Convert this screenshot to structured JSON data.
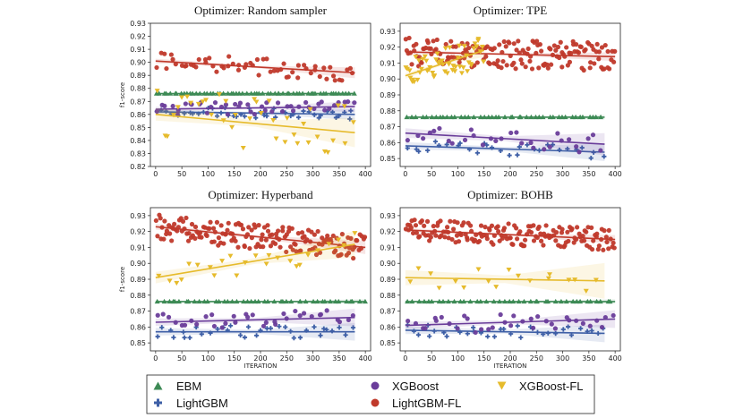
{
  "colors": {
    "EBM": "#3d8a55",
    "LightGBM": "#3e5fa6",
    "XGBoost": "#6a3d9a",
    "LightGBM-FL": "#c0392b",
    "XGBoost-FL": "#e6bb2c"
  },
  "legend": {
    "items": [
      {
        "key": "EBM",
        "label": "EBM",
        "marker": "triangle-up"
      },
      {
        "key": "LightGBM",
        "label": "LightGBM",
        "marker": "plus"
      },
      {
        "key": "XGBoost",
        "label": "XGBoost",
        "marker": "circle"
      },
      {
        "key": "LightGBM-FL",
        "label": "LightGBM-FL",
        "marker": "circle"
      },
      {
        "key": "XGBoost-FL",
        "label": "XGBoost-FL",
        "marker": "triangle-down"
      }
    ]
  },
  "chart_data": [
    {
      "type": "scatter",
      "title": "Optimizer: Random sampler",
      "xlabel": "",
      "ylabel": "f1-score",
      "xlim": [
        -10,
        410
      ],
      "ylim": [
        0.82,
        0.93
      ],
      "xticks": [
        0,
        50,
        100,
        150,
        200,
        250,
        300,
        350,
        400
      ],
      "yticks": [
        0.82,
        0.83,
        0.84,
        0.85,
        0.86,
        0.87,
        0.88,
        0.89,
        0.9,
        0.91,
        0.92,
        0.93
      ],
      "series": [
        {
          "name": "EBM",
          "xrange": [
            0,
            380
          ],
          "y_mean": 0.876,
          "spread": 0.0005,
          "n": 60,
          "trend": [
            0.876,
            0.876
          ],
          "band": 0.001
        },
        {
          "name": "LightGBM",
          "xrange": [
            0,
            380
          ],
          "y_mean": 0.86,
          "spread": 0.004,
          "n": 45,
          "trend": [
            0.862,
            0.86
          ],
          "band": 0.003
        },
        {
          "name": "XGBoost",
          "xrange": [
            0,
            380
          ],
          "y_mean": 0.864,
          "spread": 0.005,
          "n": 45,
          "trend": [
            0.864,
            0.866
          ],
          "band": 0.003
        },
        {
          "name": "LightGBM-FL",
          "xrange": [
            0,
            380
          ],
          "y_mean": 0.898,
          "spread": 0.007,
          "n": 60,
          "trend": [
            0.901,
            0.892
          ],
          "band": 0.003
        },
        {
          "name": "XGBoost-FL",
          "xrange": [
            0,
            380
          ],
          "y_mean": 0.855,
          "spread": 0.02,
          "n": 40,
          "trend": [
            0.86,
            0.846
          ],
          "band": 0.008
        }
      ]
    },
    {
      "type": "scatter",
      "title": "Optimizer: TPE",
      "xlabel": "",
      "ylabel": "",
      "xlim": [
        -10,
        410
      ],
      "ylim": [
        0.845,
        0.935
      ],
      "xticks": [
        0,
        50,
        100,
        150,
        200,
        250,
        300,
        350,
        400
      ],
      "yticks": [
        0.85,
        0.86,
        0.87,
        0.88,
        0.89,
        0.9,
        0.91,
        0.92,
        0.93
      ],
      "series": [
        {
          "name": "EBM",
          "xrange": [
            0,
            380
          ],
          "y_mean": 0.876,
          "spread": 0.0005,
          "n": 45,
          "trend": [
            0.876,
            0.876
          ],
          "band": 0.001
        },
        {
          "name": "LightGBM",
          "xrange": [
            0,
            380
          ],
          "y_mean": 0.857,
          "spread": 0.004,
          "n": 30,
          "trend": [
            0.858,
            0.854
          ],
          "band": 0.004
        },
        {
          "name": "XGBoost",
          "xrange": [
            0,
            380
          ],
          "y_mean": 0.862,
          "spread": 0.006,
          "n": 30,
          "trend": [
            0.866,
            0.859
          ],
          "band": 0.005
        },
        {
          "name": "LightGBM-FL",
          "xrange": [
            0,
            400
          ],
          "y_mean": 0.914,
          "spread": 0.009,
          "n": 170,
          "trend": [
            0.917,
            0.914
          ],
          "band": 0.002
        },
        {
          "name": "XGBoost-FL",
          "xrange": [
            0,
            150
          ],
          "y_mean": 0.906,
          "spread": 0.01,
          "n": 55,
          "trend": [
            0.902,
            0.918
          ],
          "band": 0.003
        }
      ]
    },
    {
      "type": "scatter",
      "title": "Optimizer: Hyperband",
      "xlabel": "ITERATION",
      "ylabel": "f1-score",
      "xlim": [
        -10,
        410
      ],
      "ylim": [
        0.845,
        0.935
      ],
      "xticks": [
        0,
        50,
        100,
        150,
        200,
        250,
        300,
        350,
        400
      ],
      "yticks": [
        0.85,
        0.86,
        0.87,
        0.88,
        0.89,
        0.9,
        0.91,
        0.92,
        0.93
      ],
      "series": [
        {
          "name": "EBM",
          "xrange": [
            0,
            400
          ],
          "y_mean": 0.876,
          "spread": 0.0005,
          "n": 45,
          "trend": [
            0.876,
            0.876
          ],
          "band": 0.001
        },
        {
          "name": "LightGBM",
          "xrange": [
            0,
            380
          ],
          "y_mean": 0.857,
          "spread": 0.004,
          "n": 35,
          "trend": [
            0.857,
            0.857
          ],
          "band": 0.004
        },
        {
          "name": "XGBoost",
          "xrange": [
            0,
            380
          ],
          "y_mean": 0.864,
          "spread": 0.005,
          "n": 35,
          "trend": [
            0.863,
            0.866
          ],
          "band": 0.004
        },
        {
          "name": "LightGBM-FL",
          "xrange": [
            0,
            400
          ],
          "y_mean": 0.918,
          "spread": 0.008,
          "n": 170,
          "trend": [
            0.923,
            0.91
          ],
          "band": 0.003
        },
        {
          "name": "XGBoost-FL",
          "xrange": [
            0,
            380
          ],
          "y_mean": 0.9,
          "spread": 0.008,
          "n": 25,
          "trend": [
            0.891,
            0.912
          ],
          "band": 0.006
        }
      ]
    },
    {
      "type": "scatter",
      "title": "Optimizer: BOHB",
      "xlabel": "ITERATION",
      "ylabel": "",
      "xlim": [
        -10,
        410
      ],
      "ylim": [
        0.845,
        0.935
      ],
      "xticks": [
        0,
        50,
        100,
        150,
        200,
        250,
        300,
        350,
        400
      ],
      "yticks": [
        0.85,
        0.86,
        0.87,
        0.88,
        0.89,
        0.9,
        0.91,
        0.92,
        0.93
      ],
      "series": [
        {
          "name": "EBM",
          "xrange": [
            0,
            400
          ],
          "y_mean": 0.876,
          "spread": 0.0005,
          "n": 40,
          "trend": [
            0.876,
            0.876
          ],
          "band": 0.001
        },
        {
          "name": "LightGBM",
          "xrange": [
            0,
            380
          ],
          "y_mean": 0.857,
          "spread": 0.004,
          "n": 35,
          "trend": [
            0.858,
            0.856
          ],
          "band": 0.004
        },
        {
          "name": "XGBoost",
          "xrange": [
            0,
            400
          ],
          "y_mean": 0.862,
          "spread": 0.006,
          "n": 35,
          "trend": [
            0.861,
            0.865
          ],
          "band": 0.004
        },
        {
          "name": "LightGBM-FL",
          "xrange": [
            0,
            400
          ],
          "y_mean": 0.919,
          "spread": 0.007,
          "n": 170,
          "trend": [
            0.921,
            0.915
          ],
          "band": 0.002
        },
        {
          "name": "XGBoost-FL",
          "xrange": [
            0,
            380
          ],
          "y_mean": 0.895,
          "spread": 0.008,
          "n": 18,
          "trend": [
            0.891,
            0.889
          ],
          "band": 0.008
        }
      ]
    }
  ]
}
